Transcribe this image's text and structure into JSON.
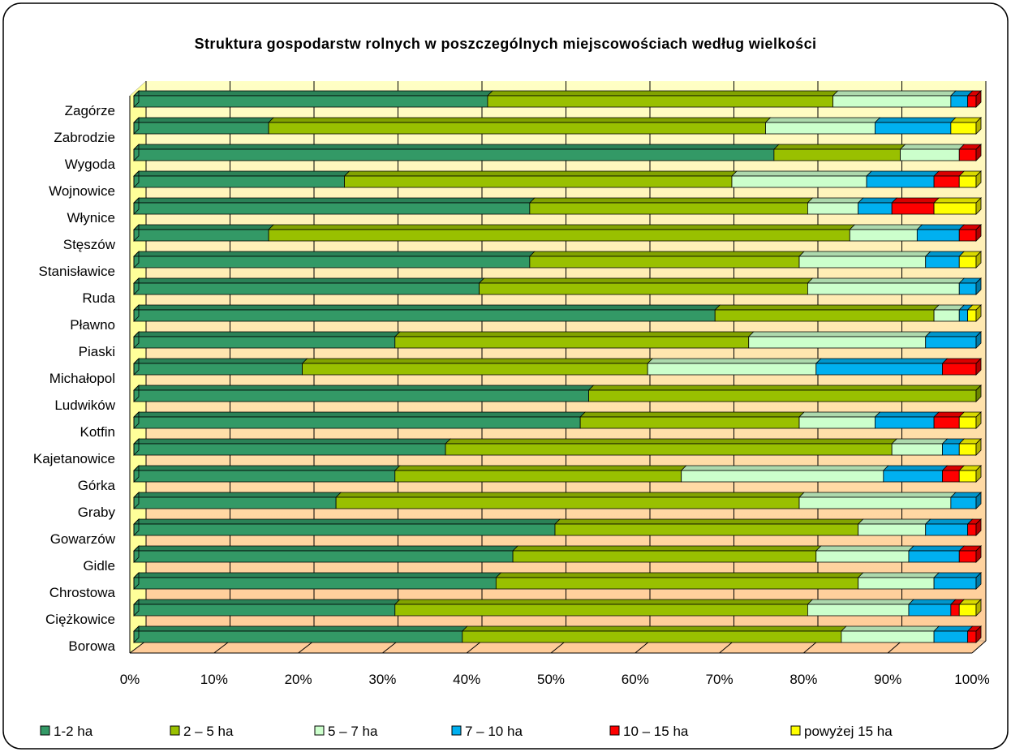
{
  "chart_data": {
    "type": "stacked-bar-horizontal",
    "title": "Struktura gospodarstw rolnych w poszczególnych miejscowościach według wielkości",
    "categories": [
      "Borowa",
      "Ciężkowice",
      "Chrostowa",
      "Gidle",
      "Gowarzów",
      "Graby",
      "Górka",
      "Kajetanowice",
      "Kotfin",
      "Ludwików",
      "Michałopol",
      "Piaski",
      "Pławno",
      "Ruda",
      "Stanisławice",
      "Stęszów",
      "Włynice",
      "Wojnowice",
      "Wygoda",
      "Zabrodzie",
      "Zagórze"
    ],
    "series": [
      {
        "name": "1-2 ha",
        "color": "#339966",
        "values": [
          39,
          31,
          43,
          45,
          50,
          24,
          31,
          37,
          53,
          54,
          20,
          31,
          69,
          41,
          47,
          16,
          47,
          25,
          76,
          16,
          42
        ]
      },
      {
        "name": "2 – 5 ha",
        "color": "#99c000",
        "values": [
          45,
          49,
          43,
          36,
          36,
          55,
          34,
          53,
          26,
          46,
          41,
          42,
          26,
          39,
          32,
          69,
          33,
          46,
          15,
          59,
          41
        ]
      },
      {
        "name": "5 – 7 ha",
        "color": "#ccffcc",
        "values": [
          11,
          12,
          9,
          11,
          8,
          18,
          24,
          6,
          9,
          0,
          20,
          21,
          3,
          18,
          15,
          8,
          6,
          16,
          7,
          13,
          14
        ]
      },
      {
        "name": "7 – 10 ha",
        "color": "#00b0f0",
        "values": [
          4,
          5,
          5,
          6,
          5,
          3,
          7,
          2,
          7,
          0,
          15,
          6,
          1,
          2,
          4,
          5,
          4,
          8,
          0,
          9,
          2
        ]
      },
      {
        "name": "10 – 15 ha",
        "color": "#ff0000",
        "values": [
          1,
          1,
          0,
          2,
          1,
          0,
          2,
          0,
          3,
          0,
          4,
          0,
          0,
          0,
          0,
          2,
          5,
          3,
          2,
          0,
          1
        ]
      },
      {
        "name": "powyżej 15 ha",
        "color": "#ffff00",
        "values": [
          0,
          2,
          0,
          0,
          0,
          0,
          2,
          2,
          2,
          0,
          0,
          0,
          1,
          0,
          2,
          0,
          5,
          2,
          0,
          3,
          0
        ]
      }
    ],
    "xlim": [
      0,
      100
    ],
    "xticks": [
      {
        "value": 0,
        "label": "0%"
      },
      {
        "value": 10,
        "label": "10%"
      },
      {
        "value": 20,
        "label": "20%"
      },
      {
        "value": 30,
        "label": "30%"
      },
      {
        "value": 40,
        "label": "40%"
      },
      {
        "value": 50,
        "label": "50%"
      },
      {
        "value": 60,
        "label": "60%"
      },
      {
        "value": 70,
        "label": "70%"
      },
      {
        "value": 80,
        "label": "80%"
      },
      {
        "value": 90,
        "label": "90%"
      },
      {
        "value": 100,
        "label": "100%"
      }
    ],
    "grid": true,
    "legend": "bottom"
  }
}
